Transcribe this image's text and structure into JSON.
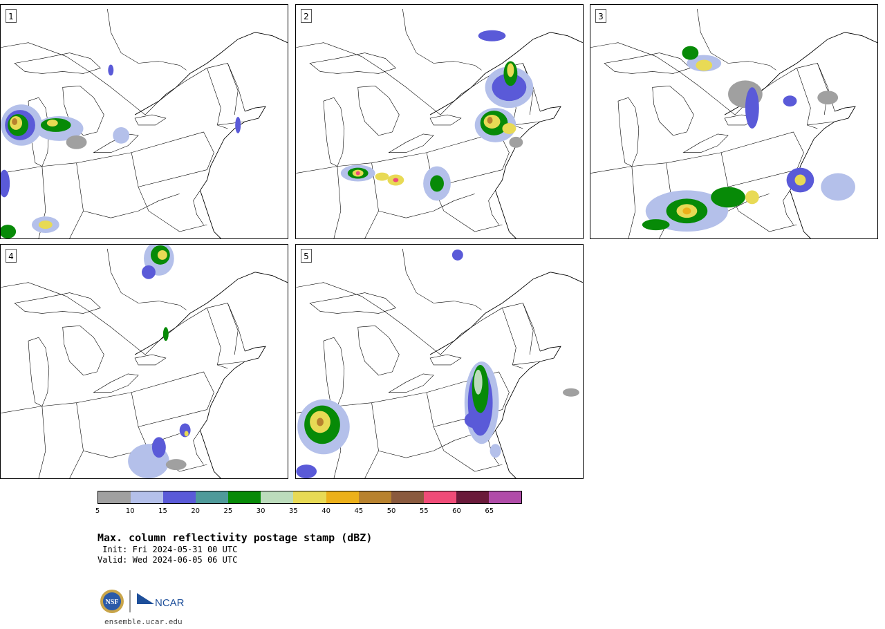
{
  "panels": [
    {
      "label": "1"
    },
    {
      "label": "2"
    },
    {
      "label": "3"
    },
    {
      "label": "4"
    },
    {
      "label": "5"
    }
  ],
  "colorbar": {
    "ticks": [
      "5",
      "10",
      "15",
      "20",
      "25",
      "30",
      "35",
      "40",
      "45",
      "50",
      "55",
      "60",
      "65"
    ],
    "colors": [
      "#a0a0a0",
      "#b4c0ea",
      "#5a5ad8",
      "#4f9a9a",
      "#078a07",
      "#bcdcbc",
      "#e8da55",
      "#ecb01a",
      "#b8822e",
      "#8a5a3e",
      "#f04c78",
      "#6a1a3a",
      "#b04ca8"
    ]
  },
  "title": "Max. column reflectivity postage stamp (dBZ)",
  "init": " Init: Fri 2024-05-31 00 UTC",
  "valid": "Valid: Wed 2024-06-05 06 UTC",
  "logos": {
    "nsf": "NSF",
    "ncar": "NCAR"
  },
  "url": "ensemble.ucar.edu"
}
